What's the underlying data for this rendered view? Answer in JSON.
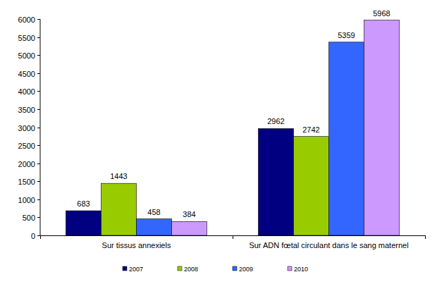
{
  "chart_data": {
    "type": "bar",
    "categories": [
      "Sur tissus annexiels",
      "Sur ADN fœtal circulant dans le sang maternel"
    ],
    "series": [
      {
        "name": "2007",
        "color": "#000080",
        "values": [
          683,
          2962
        ]
      },
      {
        "name": "2008",
        "color": "#99cc00",
        "values": [
          1443,
          2742
        ]
      },
      {
        "name": "2009",
        "color": "#3366ff",
        "values": [
          458,
          5359
        ]
      },
      {
        "name": "2010",
        "color": "#cc99ff",
        "values": [
          384,
          5968
        ]
      }
    ],
    "ylim": [
      0,
      6000
    ],
    "yticks": [
      0,
      500,
      1000,
      1500,
      2000,
      2500,
      3000,
      3500,
      4000,
      4500,
      5000,
      5500,
      6000
    ],
    "grid": false,
    "data_labels": true,
    "legend": "bottom"
  }
}
